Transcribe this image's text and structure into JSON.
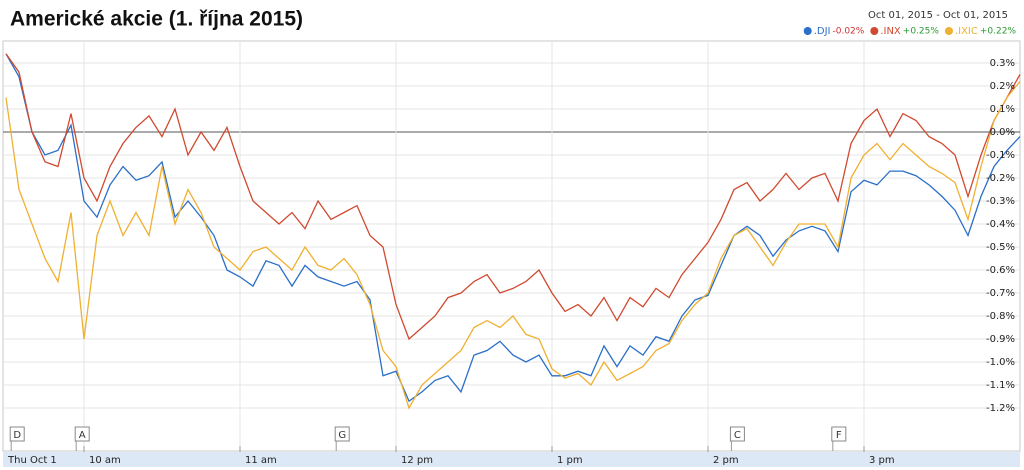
{
  "chart_data": {
    "type": "line",
    "title": "Americké akcie (1. října 2015)",
    "date_range": "Oct 01, 2015  -  Oct 01, 2015",
    "x": [
      570,
      575,
      580,
      585,
      590,
      595,
      600,
      605,
      610,
      615,
      620,
      625,
      630,
      635,
      640,
      645,
      650,
      655,
      660,
      665,
      670,
      675,
      680,
      685,
      690,
      695,
      700,
      705,
      710,
      715,
      720,
      725,
      730,
      735,
      740,
      745,
      750,
      755,
      760,
      765,
      770,
      775,
      780,
      785,
      790,
      795,
      800,
      805,
      810,
      815,
      820,
      825,
      830,
      835,
      840,
      845,
      850,
      855,
      860,
      865,
      870,
      875,
      880,
      885,
      890,
      895,
      900,
      905,
      910,
      915,
      920,
      925,
      930,
      935,
      940,
      945,
      950,
      955,
      960
    ],
    "xlim": [
      570,
      960
    ],
    "xticks": [
      {
        "value": 570,
        "label": "Thu Oct 1"
      },
      {
        "value": 600,
        "label": "10 am"
      },
      {
        "value": 660,
        "label": "11 am"
      },
      {
        "value": 720,
        "label": "12 pm"
      },
      {
        "value": 780,
        "label": "1 pm"
      },
      {
        "value": 840,
        "label": "2 pm"
      },
      {
        "value": 900,
        "label": "3 pm"
      }
    ],
    "ylim": [
      -1.25,
      0.4
    ],
    "yticks": [
      {
        "value": -1.2,
        "label": "-1.2%"
      },
      {
        "value": -1.1,
        "label": "-1.1%"
      },
      {
        "value": -1.0,
        "label": "-1.0%"
      },
      {
        "value": -0.9,
        "label": "-0.9%"
      },
      {
        "value": -0.8,
        "label": "-0.8%"
      },
      {
        "value": -0.7,
        "label": "-0.7%"
      },
      {
        "value": -0.6,
        "label": "-0.6%"
      },
      {
        "value": -0.5,
        "label": "-0.5%"
      },
      {
        "value": -0.4,
        "label": "-0.4%"
      },
      {
        "value": -0.3,
        "label": "-0.3%"
      },
      {
        "value": -0.2,
        "label": "-0.2%"
      },
      {
        "value": -0.1,
        "label": "-0.1%"
      },
      {
        "value": 0,
        "label": "0.0%"
      },
      {
        "value": 0.1,
        "label": "0.1%"
      },
      {
        "value": 0.2,
        "label": "0.2%"
      },
      {
        "value": 0.3,
        "label": "0.3%"
      }
    ],
    "grid": true,
    "legend": "top-right",
    "flags": [
      {
        "label": "D",
        "x": 572
      },
      {
        "label": "A",
        "x": 597
      },
      {
        "label": "G",
        "x": 697
      },
      {
        "label": "C",
        "x": 849
      },
      {
        "label": "F",
        "x": 888
      }
    ],
    "series": [
      {
        "name": ".DJI",
        "color": "#2a6fc9",
        "change": {
          "value": -0.02,
          "label": "-0.02%"
        },
        "values": [
          0.34,
          0.24,
          0.0,
          -0.1,
          -0.08,
          0.03,
          -0.3,
          -0.37,
          -0.23,
          -0.15,
          -0.21,
          -0.19,
          -0.13,
          -0.37,
          -0.3,
          -0.37,
          -0.45,
          -0.6,
          -0.63,
          -0.67,
          -0.56,
          -0.58,
          -0.67,
          -0.58,
          -0.63,
          -0.65,
          -0.67,
          -0.65,
          -0.73,
          -1.06,
          -1.04,
          -1.17,
          -1.13,
          -1.08,
          -1.06,
          -1.13,
          -0.97,
          -0.95,
          -0.91,
          -0.97,
          -1.0,
          -0.97,
          -1.06,
          -1.06,
          -1.04,
          -1.06,
          -0.93,
          -1.02,
          -0.93,
          -0.97,
          -0.89,
          -0.91,
          -0.8,
          -0.73,
          -0.71,
          -0.58,
          -0.45,
          -0.41,
          -0.45,
          -0.54,
          -0.47,
          -0.43,
          -0.41,
          -0.43,
          -0.52,
          -0.26,
          -0.21,
          -0.23,
          -0.17,
          -0.17,
          -0.19,
          -0.23,
          -0.28,
          -0.34,
          -0.45,
          -0.28,
          -0.15,
          -0.08,
          -0.02
        ]
      },
      {
        "name": ".INX",
        "color": "#d04a30",
        "change": {
          "value": 0.25,
          "label": "+0.25%"
        },
        "values": [
          0.34,
          0.26,
          0.0,
          -0.13,
          -0.15,
          0.08,
          -0.2,
          -0.3,
          -0.15,
          -0.05,
          0.02,
          0.07,
          -0.02,
          0.1,
          -0.1,
          0.0,
          -0.08,
          0.02,
          -0.15,
          -0.3,
          -0.35,
          -0.4,
          -0.35,
          -0.42,
          -0.3,
          -0.38,
          -0.35,
          -0.32,
          -0.45,
          -0.5,
          -0.75,
          -0.9,
          -0.85,
          -0.8,
          -0.72,
          -0.7,
          -0.65,
          -0.62,
          -0.7,
          -0.68,
          -0.65,
          -0.6,
          -0.7,
          -0.78,
          -0.75,
          -0.8,
          -0.72,
          -0.82,
          -0.72,
          -0.76,
          -0.68,
          -0.72,
          -0.62,
          -0.55,
          -0.48,
          -0.38,
          -0.25,
          -0.22,
          -0.3,
          -0.25,
          -0.18,
          -0.25,
          -0.2,
          -0.18,
          -0.3,
          -0.05,
          0.05,
          0.1,
          -0.02,
          0.08,
          0.05,
          -0.02,
          -0.05,
          -0.1,
          -0.28,
          -0.1,
          0.05,
          0.15,
          0.25
        ]
      },
      {
        "name": ".IXIC",
        "color": "#f0b030",
        "change": {
          "value": 0.22,
          "label": "+0.22%"
        },
        "values": [
          0.15,
          -0.25,
          -0.4,
          -0.55,
          -0.65,
          -0.35,
          -0.9,
          -0.45,
          -0.3,
          -0.45,
          -0.35,
          -0.45,
          -0.15,
          -0.4,
          -0.25,
          -0.35,
          -0.5,
          -0.55,
          -0.6,
          -0.52,
          -0.5,
          -0.55,
          -0.6,
          -0.5,
          -0.58,
          -0.6,
          -0.55,
          -0.62,
          -0.75,
          -0.95,
          -1.02,
          -1.2,
          -1.1,
          -1.05,
          -1.0,
          -0.95,
          -0.85,
          -0.82,
          -0.85,
          -0.8,
          -0.88,
          -0.9,
          -1.03,
          -1.07,
          -1.05,
          -1.1,
          -1.0,
          -1.08,
          -1.05,
          -1.02,
          -0.95,
          -0.92,
          -0.82,
          -0.75,
          -0.7,
          -0.55,
          -0.45,
          -0.42,
          -0.5,
          -0.58,
          -0.48,
          -0.4,
          -0.4,
          -0.4,
          -0.5,
          -0.2,
          -0.1,
          -0.05,
          -0.12,
          -0.05,
          -0.1,
          -0.15,
          -0.18,
          -0.22,
          -0.38,
          -0.15,
          0.05,
          0.15,
          0.22
        ]
      }
    ]
  }
}
